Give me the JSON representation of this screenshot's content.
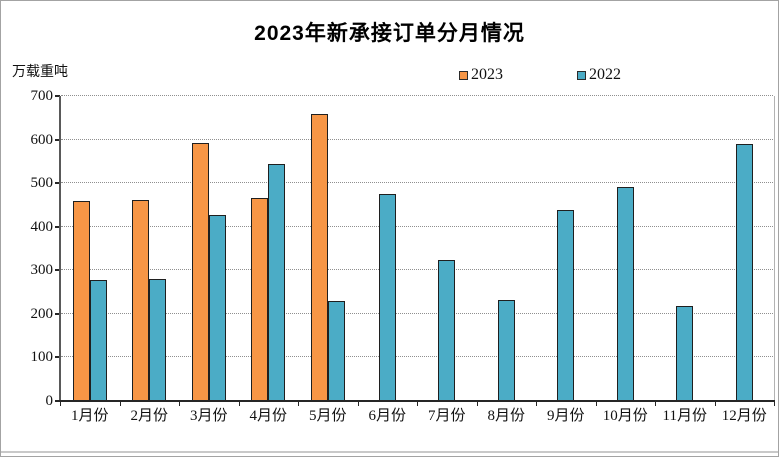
{
  "window": {
    "background": "#ffffff",
    "border_color": "#a3a3a3"
  },
  "chart_data": {
    "type": "bar",
    "title": "2023年新承接订单分月情况",
    "unit_label": "万载重吨",
    "categories": [
      "1月份",
      "2月份",
      "3月份",
      "4月份",
      "5月份",
      "6月份",
      "7月份",
      "8月份",
      "9月份",
      "10月份",
      "11月份",
      "12月份"
    ],
    "series": [
      {
        "name": "2023",
        "color": "#F79646",
        "values": [
          460,
          462,
          593,
          466,
          659,
          null,
          null,
          null,
          null,
          null,
          null,
          null
        ]
      },
      {
        "name": "2022",
        "color": "#4BACC6",
        "values": [
          278,
          280,
          427,
          545,
          229,
          475,
          324,
          231,
          439,
          492,
          218,
          590
        ]
      }
    ],
    "ylim": [
      0,
      700
    ],
    "yticks": [
      0,
      100,
      200,
      300,
      400,
      500,
      600,
      700
    ],
    "xlabel": "",
    "ylabel": "",
    "grid": "horizontal-dotted",
    "gridline_color": "#8f8f8f",
    "axis_color": "#262626",
    "bar_border_color": "#1f1f1f",
    "legend_position": "top-center"
  }
}
